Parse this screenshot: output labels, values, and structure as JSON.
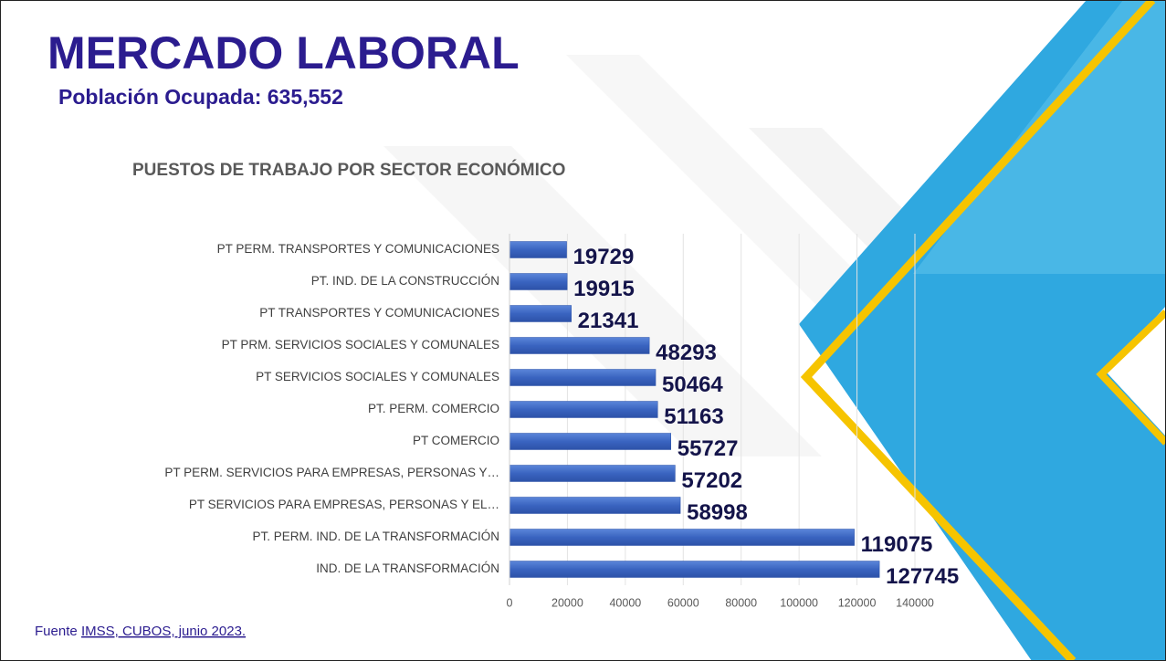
{
  "header": {
    "title": "MERCADO LABORAL",
    "subtitle": "Población Ocupada: 635,552"
  },
  "source": {
    "prefix": "Fuente",
    "link": "IMSS, CUBOS, junio 2023."
  },
  "chart_data": {
    "type": "bar",
    "orientation": "horizontal",
    "title": "PUESTOS DE TRABAJO POR SECTOR ECONÓMICO",
    "categories": [
      "PT PERM. TRANSPORTES Y COMUNICACIONES",
      "PT. IND. DE LA CONSTRUCCIÓN",
      "PT TRANSPORTES Y COMUNICACIONES",
      "PT PRM. SERVICIOS SOCIALES Y COMUNALES",
      "PT SERVICIOS SOCIALES Y COMUNALES",
      "PT. PERM. COMERCIO",
      "PT COMERCIO",
      "PT PERM. SERVICIOS PARA EMPRESAS, PERSONAS Y…",
      "PT SERVICIOS PARA EMPRESAS, PERSONAS Y EL…",
      "PT. PERM. IND. DE LA TRANSFORMACIÓN",
      "IND. DE LA TRANSFORMACIÓN"
    ],
    "values": [
      19729,
      19915,
      21341,
      48293,
      50464,
      51163,
      55727,
      57202,
      58998,
      119075,
      127745
    ],
    "color": "#3a64c0",
    "xlim": [
      0,
      140000
    ],
    "xticks": [
      0,
      20000,
      40000,
      60000,
      80000,
      100000,
      120000,
      140000
    ],
    "grid": true
  }
}
